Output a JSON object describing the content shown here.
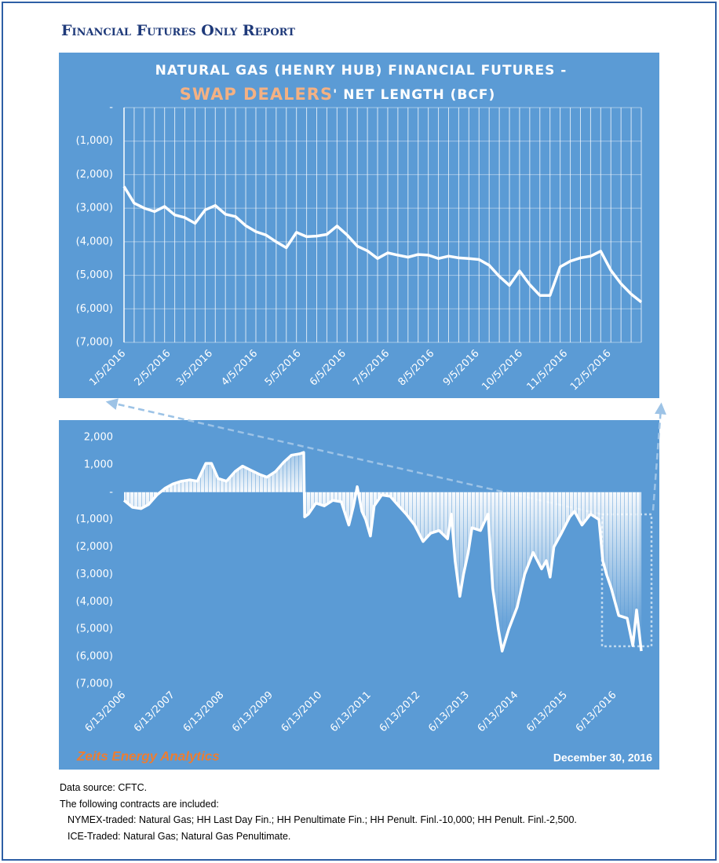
{
  "header": {
    "title": "Financial Futures Only Report"
  },
  "chart_data": [
    {
      "type": "line",
      "title": "NATURAL GAS (HENRY HUB) FINANCIAL FUTURES -",
      "title_highlight": "SWAP DEALERS",
      "title_rest": "' NET LENGTH (BCF)",
      "color": "#ffffff",
      "grid": true,
      "x": [
        "1/5/2016",
        "1/12/2016",
        "1/19/2016",
        "1/26/2016",
        "2/2/2016",
        "2/9/2016",
        "2/16/2016",
        "2/23/2016",
        "3/1/2016",
        "3/8/2016",
        "3/15/2016",
        "3/22/2016",
        "3/29/2016",
        "4/5/2016",
        "4/12/2016",
        "4/19/2016",
        "4/26/2016",
        "5/3/2016",
        "5/10/2016",
        "5/17/2016",
        "5/24/2016",
        "5/31/2016",
        "6/7/2016",
        "6/14/2016",
        "6/21/2016",
        "6/28/2016",
        "7/5/2016",
        "7/12/2016",
        "7/19/2016",
        "7/26/2016",
        "8/2/2016",
        "8/9/2016",
        "8/16/2016",
        "8/23/2016",
        "8/30/2016",
        "9/6/2016",
        "9/13/2016",
        "9/20/2016",
        "9/27/2016",
        "10/4/2016",
        "10/11/2016",
        "10/18/2016",
        "10/25/2016",
        "11/1/2016",
        "11/8/2016",
        "11/15/2016",
        "11/22/2016",
        "11/29/2016",
        "12/6/2016",
        "12/13/2016",
        "12/20/2016",
        "12/27/2016"
      ],
      "values": [
        -2350,
        -2850,
        -3000,
        -3100,
        -2950,
        -3200,
        -3280,
        -3450,
        -3050,
        -2920,
        -3180,
        -3250,
        -3520,
        -3700,
        -3800,
        -4000,
        -4180,
        -3720,
        -3850,
        -3830,
        -3780,
        -3530,
        -3800,
        -4130,
        -4270,
        -4500,
        -4330,
        -4400,
        -4460,
        -4380,
        -4400,
        -4500,
        -4430,
        -4480,
        -4500,
        -4530,
        -4700,
        -5030,
        -5300,
        -4870,
        -5280,
        -5600,
        -5600,
        -4750,
        -4580,
        -4480,
        -4430,
        -4280,
        -4850,
        -5250,
        -5560,
        -5800
      ],
      "xlim": [
        "1/5/2016",
        "12/27/2016"
      ],
      "xticks": [
        "1/5/2016",
        "2/5/2016",
        "3/5/2016",
        "4/5/2016",
        "5/5/2016",
        "6/5/2016",
        "7/5/2016",
        "8/5/2016",
        "9/5/2016",
        "10/5/2016",
        "11/5/2016",
        "12/5/2016"
      ],
      "ylim": [
        -7000,
        0
      ],
      "yticks": [
        {
          "value": 0,
          "label": "-"
        },
        {
          "value": -1000,
          "label": "(1,000)"
        },
        {
          "value": -2000,
          "label": "(2,000)"
        },
        {
          "value": -3000,
          "label": "(3,000)"
        },
        {
          "value": -4000,
          "label": "(4,000)"
        },
        {
          "value": -5000,
          "label": "(5,000)"
        },
        {
          "value": -6000,
          "label": "(6,000)"
        },
        {
          "value": -7000,
          "label": "(7,000)"
        }
      ]
    },
    {
      "type": "area",
      "color": "#ffffff",
      "grid": false,
      "x": [
        "6/13/2006",
        "8/15/2006",
        "10/17/2006",
        "12/12/2006",
        "2/13/2007",
        "4/17/2007",
        "6/12/2007",
        "8/14/2007",
        "10/16/2007",
        "12/11/2007",
        "2/12/2008",
        "3/25/2008",
        "5/13/2008",
        "7/15/2008",
        "9/16/2008",
        "11/11/2008",
        "1/13/2009",
        "3/17/2009",
        "5/12/2009",
        "7/14/2009",
        "9/15/2009",
        "11/10/2009",
        "1/12/2010",
        "2/9/2010",
        "2/16/2010",
        "3/16/2010",
        "5/11/2010",
        "7/13/2010",
        "9/14/2010",
        "11/16/2010",
        "1/11/2011",
        "2/15/2011",
        "3/15/2011",
        "4/19/2011",
        "5/17/2011",
        "6/21/2011",
        "7/19/2011",
        "9/13/2011",
        "11/15/2011",
        "1/17/2012",
        "3/13/2012",
        "5/15/2012",
        "7/17/2012",
        "9/11/2012",
        "11/13/2012",
        "1/15/2013",
        "2/12/2013",
        "3/12/2013",
        "4/16/2013",
        "5/14/2013",
        "6/18/2013",
        "7/16/2013",
        "9/17/2013",
        "11/12/2013",
        "12/17/2013",
        "1/28/2014",
        "2/25/2014",
        "4/15/2014",
        "6/17/2014",
        "8/12/2014",
        "10/14/2014",
        "12/16/2014",
        "1/20/2015",
        "2/17/2015",
        "3/17/2015",
        "5/12/2015",
        "7/14/2015",
        "8/18/2015",
        "10/13/2015",
        "12/15/2015",
        "2/16/2016",
        "3/15/2016",
        "4/12/2016",
        "5/17/2016",
        "7/12/2016",
        "9/13/2016",
        "10/25/2016",
        "11/22/2016",
        "12/27/2016"
      ],
      "values": [
        -300,
        -550,
        -600,
        -450,
        -100,
        150,
        300,
        400,
        450,
        400,
        1050,
        1050,
        500,
        400,
        750,
        950,
        800,
        650,
        550,
        750,
        1100,
        1350,
        1400,
        1450,
        -900,
        -800,
        -400,
        -500,
        -300,
        -350,
        -1200,
        -500,
        200,
        -700,
        -1000,
        -1600,
        -500,
        -100,
        -150,
        -500,
        -800,
        -1200,
        -1800,
        -1500,
        -1400,
        -1700,
        -800,
        -2500,
        -3800,
        -3000,
        -2200,
        -1300,
        -1400,
        -800,
        -3500,
        -5000,
        -5800,
        -5000,
        -4200,
        -3000,
        -2200,
        -2800,
        -2500,
        -3100,
        -2000,
        -1500,
        -900,
        -700,
        -1200,
        -800,
        -1000,
        -2500,
        -3000,
        -3500,
        -4500,
        -4600,
        -5600,
        -4300,
        -5800
      ],
      "xlim": [
        "6/13/2006",
        "12/27/2016"
      ],
      "xticks": [
        "6/13/2006",
        "6/13/2007",
        "6/13/2008",
        "6/13/2009",
        "6/13/2010",
        "6/13/2011",
        "6/13/2012",
        "6/13/2013",
        "6/13/2014",
        "6/13/2015",
        "6/13/2016"
      ],
      "ylim": [
        -7000,
        2000
      ],
      "yticks": [
        {
          "value": 2000,
          "label": "2,000"
        },
        {
          "value": 1000,
          "label": "1,000"
        },
        {
          "value": 0,
          "label": "-"
        },
        {
          "value": -1000,
          "label": "(1,000)"
        },
        {
          "value": -2000,
          "label": "(2,000)"
        },
        {
          "value": -3000,
          "label": "(3,000)"
        },
        {
          "value": -4000,
          "label": "(4,000)"
        },
        {
          "value": -5000,
          "label": "(5,000)"
        },
        {
          "value": -6000,
          "label": "(6,000)"
        },
        {
          "value": -7000,
          "label": "(7,000)"
        }
      ],
      "brand": "Zeits Energy Analytics",
      "date": "December 30, 2016"
    }
  ],
  "footer": {
    "notes": [
      "Data source: CFTC.",
      "The following contracts are included:",
      "NYMEX-traded: Natural Gas; HH Last Day Fin.; HH Penultimate Fin.; HH Penult. Finl.-10,000; HH Penult. Finl.-2,500.",
      "ICE-Traded: Natural Gas; Natural Gas Penultimate."
    ]
  }
}
